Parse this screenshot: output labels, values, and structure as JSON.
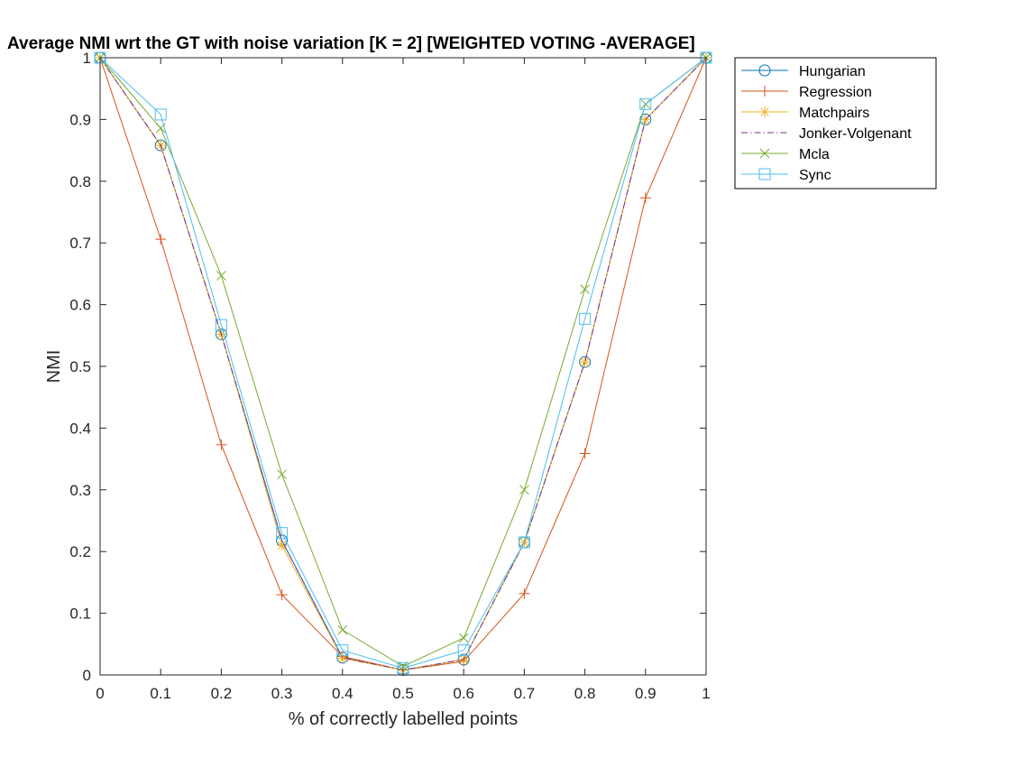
{
  "chart_data": {
    "type": "line",
    "title": "Average NMI wrt the GT with noise variation [K = 2] [WEIGHTED VOTING -AVERAGE]",
    "xlabel": "% of correctly labelled points",
    "ylabel": "NMI",
    "xlim": [
      0,
      1
    ],
    "ylim": [
      0,
      1
    ],
    "x": [
      0,
      0.1,
      0.2,
      0.3,
      0.4,
      0.5,
      0.6,
      0.7,
      0.8,
      0.9,
      1
    ],
    "xticks": [
      "0",
      "0.1",
      "0.2",
      "0.3",
      "0.4",
      "0.5",
      "0.6",
      "0.7",
      "0.8",
      "0.9",
      "1"
    ],
    "yticks": [
      "0",
      "0.1",
      "0.2",
      "0.3",
      "0.4",
      "0.5",
      "0.6",
      "0.7",
      "0.8",
      "0.9",
      "1"
    ],
    "grid": false,
    "legend_position": "outside-top-right",
    "series": [
      {
        "name": "Hungarian",
        "color": "#0072BD",
        "marker": "circle",
        "dash": "solid",
        "values": [
          1,
          0.858,
          0.552,
          0.218,
          0.028,
          0.008,
          0.025,
          0.215,
          0.507,
          0.9,
          1
        ]
      },
      {
        "name": "Regression",
        "color": "#D95319",
        "marker": "plus",
        "dash": "solid",
        "values": [
          1,
          0.706,
          0.373,
          0.13,
          0.03,
          0.008,
          0.022,
          0.132,
          0.359,
          0.773,
          1
        ]
      },
      {
        "name": "Matchpairs",
        "color": "#EDB120",
        "marker": "asterisk",
        "dash": "solid",
        "values": [
          1,
          0.858,
          0.552,
          0.21,
          0.027,
          0.008,
          0.025,
          0.215,
          0.507,
          0.9,
          1
        ]
      },
      {
        "name": "Jonker-Volgenant",
        "color": "#7E2F8E",
        "marker": "none",
        "dash": "dashdot",
        "values": [
          1,
          0.858,
          0.552,
          0.218,
          0.028,
          0.008,
          0.025,
          0.215,
          0.507,
          0.9,
          1
        ]
      },
      {
        "name": "Mcla",
        "color": "#77AC30",
        "marker": "x",
        "dash": "solid",
        "values": [
          1,
          0.886,
          0.647,
          0.325,
          0.073,
          0.014,
          0.06,
          0.3,
          0.625,
          0.925,
          1
        ]
      },
      {
        "name": "Sync",
        "color": "#4DBEEE",
        "marker": "square",
        "dash": "solid",
        "values": [
          1,
          0.908,
          0.567,
          0.23,
          0.04,
          0.011,
          0.04,
          0.215,
          0.577,
          0.925,
          1
        ]
      }
    ]
  }
}
